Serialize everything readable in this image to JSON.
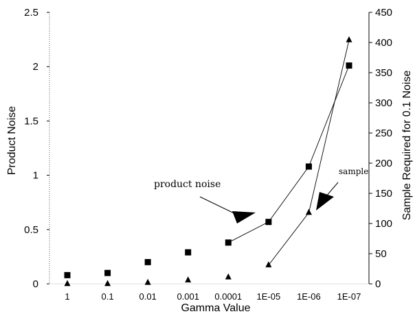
{
  "chart_data": {
    "type": "line",
    "categories": [
      "1",
      "0.1",
      "0.01",
      "0.001",
      "0.0001",
      "1E-05",
      "1E-06",
      "1E-07"
    ],
    "xlabel": "Gamma Value",
    "ylabel": "Product Noise",
    "y2label": "Sample Required for 0.1 Noise",
    "ylim": [
      0,
      2.5
    ],
    "y2lim": [
      0,
      450
    ],
    "yticks": [
      "0",
      "0.5",
      "1",
      "1.5",
      "2",
      "2.5"
    ],
    "y2ticks": [
      "0",
      "50",
      "100",
      "150",
      "200",
      "250",
      "300",
      "350",
      "400",
      "450"
    ],
    "grid": false,
    "series": [
      {
        "marker": "square",
        "axis": "left",
        "values": [
          0.08,
          0.1,
          0.2,
          0.29,
          0.38,
          0.57,
          1.08,
          2.01
        ],
        "connected_from_index": 4
      },
      {
        "marker": "triangle",
        "axis": "right",
        "values": [
          0,
          0,
          2,
          6,
          11,
          31,
          118,
          404
        ],
        "connected_from_index": 5
      }
    ],
    "annotations": [
      {
        "text": "product noise",
        "points_to_series": 0
      },
      {
        "text": "sample",
        "points_to_series": 1
      }
    ]
  }
}
